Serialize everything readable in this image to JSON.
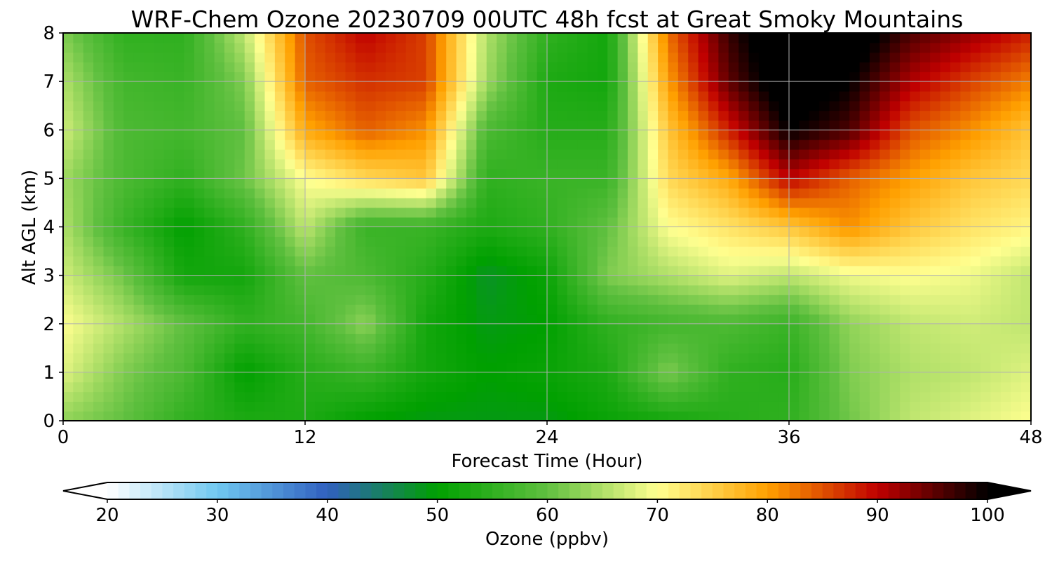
{
  "chart_data": {
    "type": "heatmap",
    "title": "WRF-Chem Ozone  20230709 00UTC 48h fcst at Great Smoky Mountains",
    "xlabel": "Forecast Time (Hour)",
    "ylabel": "Alt AGL (km)",
    "xlim": [
      0,
      48
    ],
    "ylim": [
      0,
      8
    ],
    "xticks": [
      0,
      12,
      24,
      36,
      48
    ],
    "yticks": [
      0,
      1,
      2,
      3,
      4,
      5,
      6,
      7,
      8
    ],
    "grid": true,
    "x": [
      0,
      3,
      6,
      9,
      12,
      15,
      18,
      21,
      24,
      27,
      30,
      33,
      36,
      39,
      42,
      45,
      48
    ],
    "y": [
      0,
      1,
      2,
      3,
      4,
      5,
      6,
      7,
      8
    ],
    "z": [
      [
        63,
        60,
        55,
        53,
        53,
        50,
        49,
        49,
        49,
        51,
        52,
        54,
        55,
        61,
        66,
        68,
        70
      ],
      [
        68,
        62,
        58,
        50,
        54,
        56,
        52,
        50,
        51,
        53,
        62,
        55,
        54,
        62,
        65,
        66,
        68
      ],
      [
        70,
        65,
        60,
        55,
        57,
        63,
        52,
        49,
        50,
        55,
        57,
        58,
        56,
        63,
        66,
        67,
        66
      ],
      [
        67,
        61,
        52,
        52,
        60,
        58,
        54,
        48,
        51,
        62,
        65,
        68,
        66,
        69,
        70,
        69,
        66
      ],
      [
        65,
        56,
        50,
        55,
        66,
        56,
        56,
        53,
        55,
        60,
        70,
        73,
        76,
        81,
        76,
        73,
        71
      ],
      [
        64,
        58,
        55,
        61,
        70,
        74,
        76,
        55,
        56,
        56,
        74,
        79,
        90,
        84,
        80,
        76,
        74
      ],
      [
        67,
        58,
        57,
        60,
        79,
        84,
        81,
        58,
        54,
        54,
        76,
        88,
        100,
        96,
        85,
        81,
        76
      ],
      [
        65,
        57,
        56,
        62,
        84,
        87,
        86,
        64,
        53,
        52,
        80,
        95,
        104,
        100,
        91,
        86,
        82
      ],
      [
        62,
        55,
        55,
        66,
        85,
        90,
        86,
        65,
        55,
        52,
        83,
        97,
        106,
        104,
        96,
        92,
        88
      ]
    ],
    "colorbar": {
      "label": "Ozone  (ppbv)",
      "vmin": 20,
      "vmax": 100,
      "ticks": [
        20,
        30,
        40,
        50,
        60,
        70,
        80,
        90,
        100
      ],
      "extend": "both",
      "stops": [
        "#ffffff",
        "#70c8f0",
        "#3060c0",
        "#00a000",
        "#60c040",
        "#ffff90",
        "#ffa000",
        "#c00000",
        "#000000"
      ]
    }
  }
}
